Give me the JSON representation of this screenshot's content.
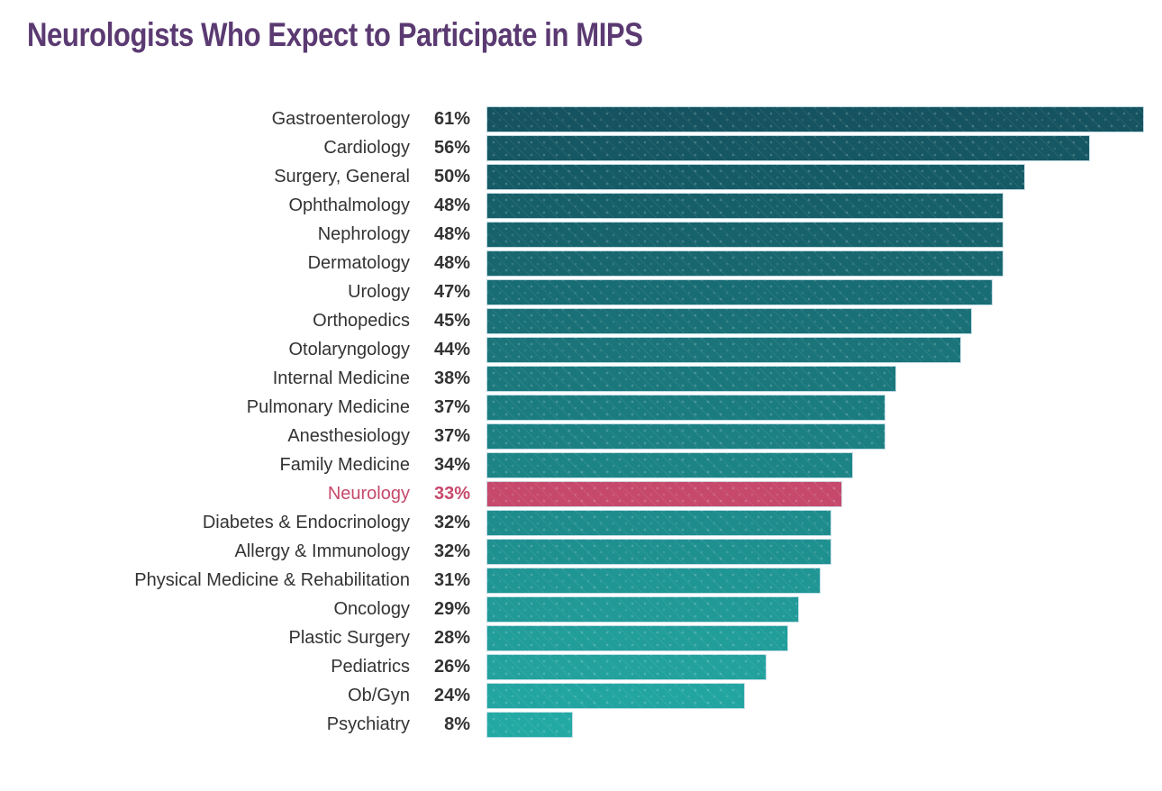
{
  "title": "Neurologists Who Expect to Participate in MIPS",
  "chart_data": {
    "type": "bar",
    "orientation": "horizontal",
    "title": "Neurologists Who Expect to Participate in MIPS",
    "categories": [
      "Gastroenterology",
      "Cardiology",
      "Surgery, General",
      "Ophthalmology",
      "Nephrology",
      "Dermatology",
      "Urology",
      "Orthopedics",
      "Otolaryngology",
      "Internal Medicine",
      "Pulmonary Medicine",
      "Anesthesiology",
      "Family Medicine",
      "Neurology",
      "Diabetes & Endocrinology",
      "Allergy & Immunology",
      "Physical Medicine & Rehabilitation",
      "Oncology",
      "Plastic Surgery",
      "Pediatrics",
      "Ob/Gyn",
      "Psychiatry"
    ],
    "values": [
      61,
      56,
      50,
      48,
      48,
      48,
      47,
      45,
      44,
      38,
      37,
      37,
      34,
      33,
      32,
      32,
      31,
      29,
      28,
      26,
      24,
      8
    ],
    "value_labels": [
      "61%",
      "56%",
      "50%",
      "48%",
      "48%",
      "48%",
      "47%",
      "45%",
      "44%",
      "38%",
      "37%",
      "37%",
      "34%",
      "33%",
      "32%",
      "32%",
      "31%",
      "29%",
      "28%",
      "26%",
      "24%",
      "8%"
    ],
    "highlight_category": "Neurology",
    "xlabel": "",
    "ylabel": "",
    "xlim": [
      0,
      61
    ],
    "grid": false,
    "legend": "none",
    "colors": {
      "background": "#FFFFFF",
      "title": "#5B3A72",
      "label_text": "#333333",
      "bar_gradient_top": "#14535F",
      "bar_gradient_bottom": "#23A9A4",
      "highlight": "#C6496B",
      "bar_border": "#CFE4ED"
    }
  }
}
